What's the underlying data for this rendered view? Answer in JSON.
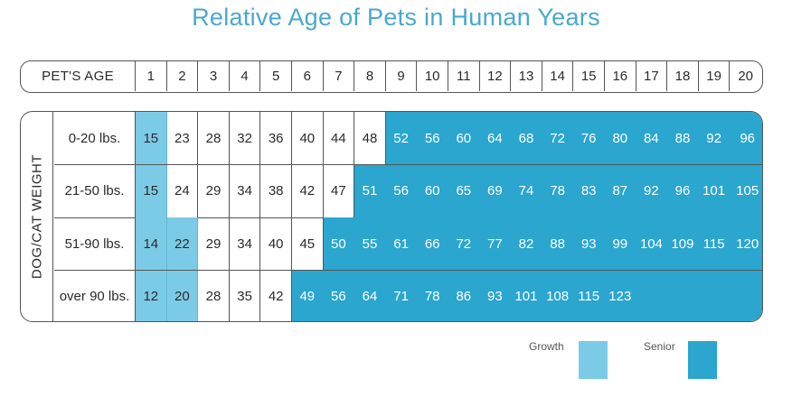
{
  "title": "Relative Age of Pets in Human Years",
  "colors": {
    "title": "#49a9cc",
    "growth": "#7ccbe6",
    "senior": "#2aa6cf"
  },
  "legend": [
    {
      "label": "Growth",
      "color": "#7ccbe6"
    },
    {
      "label": "Senior",
      "color": "#2aa6cf"
    }
  ],
  "chart_data": {
    "type": "table",
    "title": "Relative Age of Pets in Human Years",
    "header_label": "PET'S AGE",
    "row_group_label": "DOG/CAT WEIGHT",
    "ages": [
      1,
      2,
      3,
      4,
      5,
      6,
      7,
      8,
      9,
      10,
      11,
      12,
      13,
      14,
      15,
      16,
      17,
      18,
      19,
      20
    ],
    "rows": [
      {
        "weight": "0-20 lbs.",
        "values": [
          15,
          23,
          28,
          32,
          36,
          40,
          44,
          48,
          52,
          56,
          60,
          64,
          68,
          72,
          76,
          80,
          84,
          88,
          92,
          96
        ],
        "growth_until_age": 1,
        "senior_from_age": 9
      },
      {
        "weight": "21-50 lbs.",
        "values": [
          15,
          24,
          29,
          34,
          38,
          42,
          47,
          51,
          56,
          60,
          65,
          69,
          74,
          78,
          83,
          87,
          92,
          96,
          101,
          105
        ],
        "growth_until_age": 1,
        "senior_from_age": 8
      },
      {
        "weight": "51-90 lbs.",
        "values": [
          14,
          22,
          29,
          34,
          40,
          45,
          50,
          55,
          61,
          66,
          72,
          77,
          82,
          88,
          93,
          99,
          104,
          109,
          115,
          120
        ],
        "growth_until_age": 2,
        "senior_from_age": 7
      },
      {
        "weight": "over 90 lbs.",
        "values": [
          12,
          20,
          28,
          35,
          42,
          49,
          56,
          64,
          71,
          78,
          86,
          93,
          101,
          108,
          115,
          123,
          null,
          null,
          null,
          null
        ],
        "growth_until_age": 2,
        "senior_from_age": 6
      }
    ]
  }
}
